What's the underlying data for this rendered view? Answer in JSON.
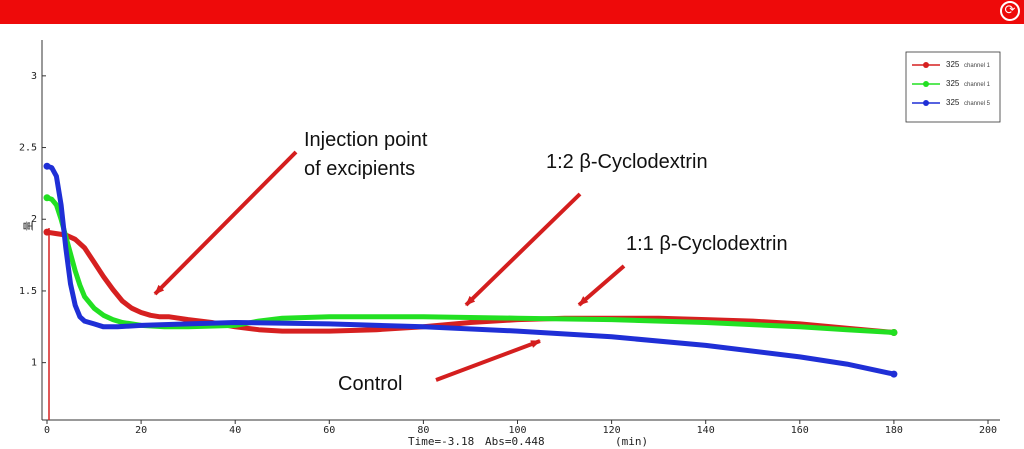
{
  "toolbar": {
    "refresh_icon": "refresh-icon"
  },
  "status": {
    "time": "Time=-3.18",
    "abs": "Abs=0.448",
    "unit": "(min)"
  },
  "colors": {
    "topbar": "#ee0a0a",
    "arrow": "#d41e1e",
    "red_series": "#d62020",
    "green_series": "#22e022",
    "blue_series": "#1f2fd6"
  },
  "chart_data": {
    "type": "line",
    "xlabel": "(min)",
    "ylabel": "量",
    "xlim": [
      0,
      200
    ],
    "ylim": [
      0.6,
      3.25
    ],
    "x_ticks": [
      "0",
      "20",
      "40",
      "60",
      "80",
      "100",
      "120",
      "140",
      "160",
      "180",
      "200"
    ],
    "y_ticks": [
      "1",
      "1.5",
      "2",
      "2.5",
      "3"
    ],
    "grid": false,
    "legend_position": "top-right",
    "series": [
      {
        "name": "325",
        "legend_sub": "channel 1",
        "color": "#d62020",
        "points": [
          [
            0,
            1.91
          ],
          [
            2,
            1.9
          ],
          [
            4,
            1.89
          ],
          [
            6,
            1.86
          ],
          [
            8,
            1.8
          ],
          [
            10,
            1.7
          ],
          [
            12,
            1.6
          ],
          [
            14,
            1.51
          ],
          [
            16,
            1.43
          ],
          [
            18,
            1.38
          ],
          [
            20,
            1.35
          ],
          [
            22,
            1.33
          ],
          [
            24,
            1.32
          ],
          [
            26,
            1.32
          ],
          [
            28,
            1.31
          ],
          [
            30,
            1.3
          ],
          [
            35,
            1.28
          ],
          [
            40,
            1.25
          ],
          [
            45,
            1.23
          ],
          [
            50,
            1.22
          ],
          [
            60,
            1.22
          ],
          [
            70,
            1.23
          ],
          [
            80,
            1.25
          ],
          [
            90,
            1.28
          ],
          [
            100,
            1.3
          ],
          [
            110,
            1.31
          ],
          [
            120,
            1.31
          ],
          [
            130,
            1.31
          ],
          [
            140,
            1.3
          ],
          [
            150,
            1.29
          ],
          [
            160,
            1.27
          ],
          [
            170,
            1.24
          ],
          [
            180,
            1.21
          ]
        ]
      },
      {
        "name": "325",
        "legend_sub": "channel 1",
        "color": "#22e022",
        "points": [
          [
            0,
            2.15
          ],
          [
            1,
            2.14
          ],
          [
            2,
            2.1
          ],
          [
            3,
            2.0
          ],
          [
            4,
            1.88
          ],
          [
            5,
            1.76
          ],
          [
            6,
            1.64
          ],
          [
            7,
            1.54
          ],
          [
            8,
            1.46
          ],
          [
            10,
            1.38
          ],
          [
            12,
            1.33
          ],
          [
            14,
            1.3
          ],
          [
            16,
            1.28
          ],
          [
            18,
            1.27
          ],
          [
            20,
            1.26
          ],
          [
            25,
            1.25
          ],
          [
            30,
            1.25
          ],
          [
            40,
            1.26
          ],
          [
            45,
            1.29
          ],
          [
            50,
            1.31
          ],
          [
            60,
            1.32
          ],
          [
            80,
            1.32
          ],
          [
            100,
            1.31
          ],
          [
            120,
            1.3
          ],
          [
            140,
            1.28
          ],
          [
            160,
            1.25
          ],
          [
            170,
            1.23
          ],
          [
            180,
            1.21
          ]
        ]
      },
      {
        "name": "325",
        "legend_sub": "channel 5",
        "color": "#1f2fd6",
        "points": [
          [
            0,
            2.37
          ],
          [
            1,
            2.36
          ],
          [
            2,
            2.3
          ],
          [
            3,
            2.1
          ],
          [
            4,
            1.8
          ],
          [
            5,
            1.55
          ],
          [
            6,
            1.4
          ],
          [
            7,
            1.32
          ],
          [
            8,
            1.29
          ],
          [
            10,
            1.27
          ],
          [
            12,
            1.25
          ],
          [
            15,
            1.25
          ],
          [
            20,
            1.26
          ],
          [
            30,
            1.27
          ],
          [
            40,
            1.28
          ],
          [
            60,
            1.27
          ],
          [
            80,
            1.25
          ],
          [
            100,
            1.22
          ],
          [
            120,
            1.18
          ],
          [
            140,
            1.12
          ],
          [
            160,
            1.04
          ],
          [
            170,
            0.99
          ],
          [
            180,
            0.92
          ]
        ]
      }
    ],
    "annotations": [
      {
        "text": "Injection point",
        "text2": "of excipients"
      },
      {
        "text": "1:2 β-Cyclodextrin"
      },
      {
        "text": "1:1 β-Cyclodextrin"
      },
      {
        "text": "Control"
      }
    ]
  }
}
